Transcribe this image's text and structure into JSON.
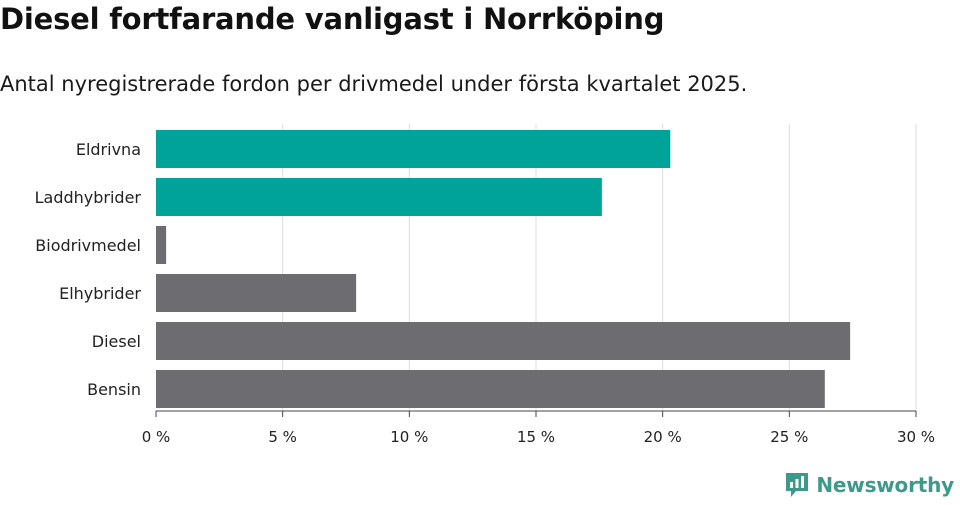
{
  "header": {
    "title": "Diesel fortfarande vanligast i Norrköping",
    "subtitle": "Antal nyregistrerade fordon per drivmedel under första kvartalet 2025."
  },
  "brand": {
    "name": "Newsworthy",
    "logo_icon": "bar-chart-bubble-icon",
    "color": "#3d9a8b"
  },
  "colors": {
    "highlight": "#00a398",
    "default": "#6d6c70",
    "grid": "#dcdcdc",
    "axis": "#444444"
  },
  "chart_data": {
    "type": "bar",
    "orientation": "horizontal",
    "title": "Diesel fortfarande vanligast i Norrköping",
    "subtitle": "Antal nyregistrerade fordon per drivmedel under första kvartalet 2025.",
    "categories": [
      "Eldrivna",
      "Laddhybrider",
      "Biodrivmedel",
      "Elhybrider",
      "Diesel",
      "Bensin"
    ],
    "values": [
      20.3,
      17.6,
      0.4,
      7.9,
      27.4,
      26.4
    ],
    "highlighted": [
      "Eldrivna",
      "Laddhybrider"
    ],
    "xlim": [
      0,
      30
    ],
    "xticks": [
      0,
      5,
      10,
      15,
      20,
      25,
      30
    ],
    "xtick_labels": [
      "0 %",
      "5 %",
      "10 %",
      "15 %",
      "20 %",
      "25 %",
      "30 %"
    ],
    "xlabel": "",
    "ylabel": "",
    "grid": true,
    "legend": "none"
  }
}
